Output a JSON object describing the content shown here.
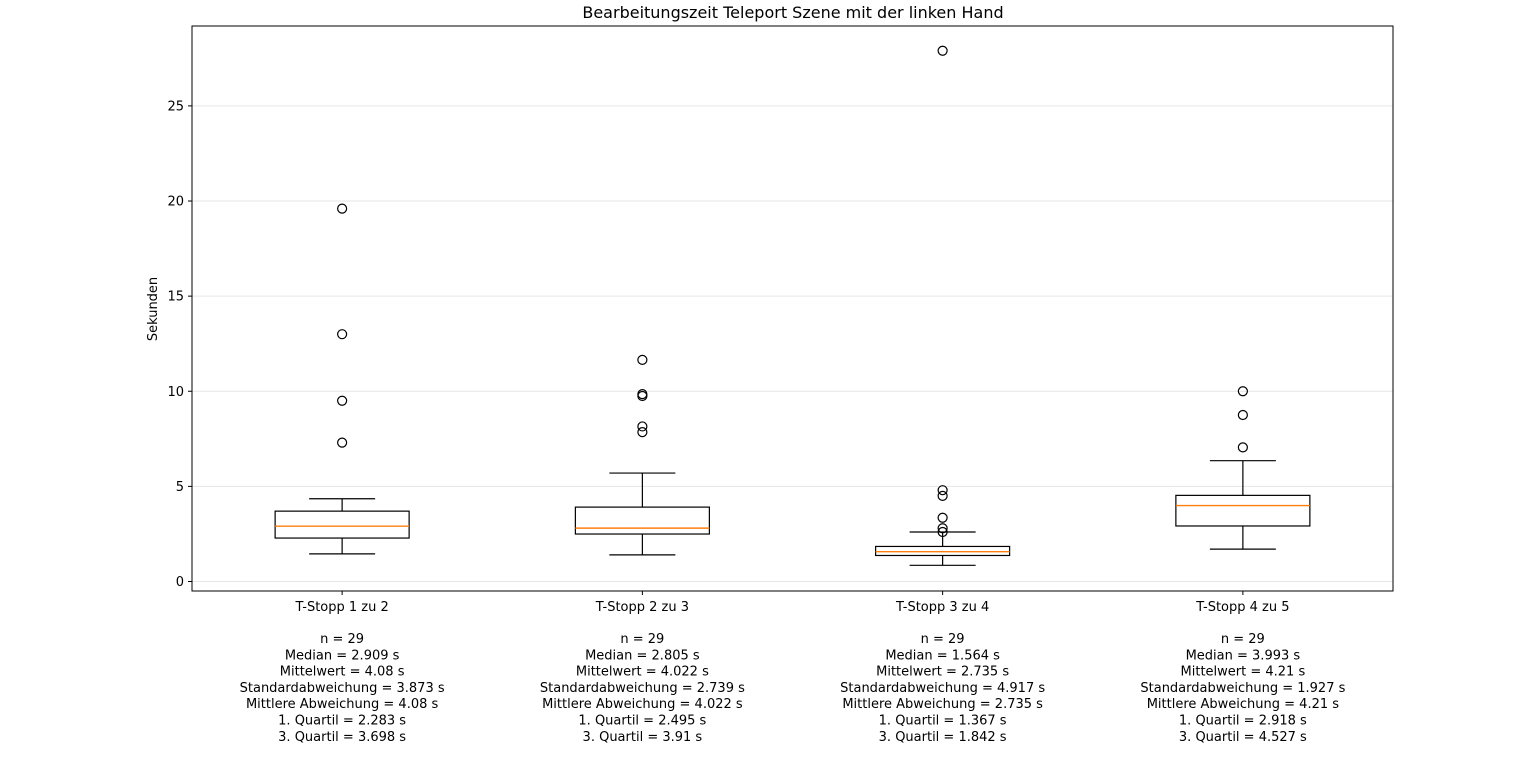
{
  "chart_data": {
    "type": "box",
    "title": "Bearbeitungszeit Teleport Szene mit der linken Hand",
    "xlabel": "",
    "ylabel": "Sekunden",
    "ylim": [
      -0.5,
      29.2
    ],
    "yticks": [
      0,
      5,
      10,
      15,
      20,
      25
    ],
    "grid": "horizontal",
    "colors": {
      "box": "#000000",
      "median": "#ff7f0e",
      "grid": "#e6e6e6"
    },
    "categories": [
      "T-Stopp 1 zu 2",
      "T-Stopp 2 zu 3",
      "T-Stopp 3 zu 4",
      "T-Stopp 4 zu 5"
    ],
    "boxes": [
      {
        "q1": 2.283,
        "median": 2.909,
        "q3": 3.698,
        "whisker_low": 1.45,
        "whisker_high": 4.35,
        "outliers": [
          7.3,
          9.5,
          13.0,
          19.6
        ]
      },
      {
        "q1": 2.495,
        "median": 2.805,
        "q3": 3.91,
        "whisker_low": 1.4,
        "whisker_high": 5.7,
        "outliers": [
          7.85,
          8.15,
          9.75,
          9.85,
          11.65
        ]
      },
      {
        "q1": 1.367,
        "median": 1.564,
        "q3": 1.842,
        "whisker_low": 0.85,
        "whisker_high": 2.6,
        "outliers": [
          2.6,
          2.8,
          3.35,
          4.5,
          4.8,
          27.9
        ]
      },
      {
        "q1": 2.918,
        "median": 3.993,
        "q3": 4.527,
        "whisker_low": 1.7,
        "whisker_high": 6.35,
        "outliers": [
          7.05,
          8.75,
          10.0
        ]
      }
    ],
    "stats": [
      [
        "n = 29",
        "Median = 2.909 s",
        "Mittelwert = 4.08 s",
        "Standardabweichung = 3.873 s",
        "Mittlere Abweichung = 4.08 s",
        "1. Quartil = 2.283 s",
        "3. Quartil = 3.698 s"
      ],
      [
        "n = 29",
        "Median = 2.805 s",
        "Mittelwert = 4.022 s",
        "Standardabweichung = 2.739 s",
        "Mittlere Abweichung = 4.022 s",
        "1. Quartil = 2.495 s",
        "3. Quartil = 3.91 s"
      ],
      [
        "n = 29",
        "Median = 1.564 s",
        "Mittelwert = 2.735 s",
        "Standardabweichung = 4.917 s",
        "Mittlere Abweichung = 2.735 s",
        "1. Quartil = 1.367 s",
        "3. Quartil = 1.842 s"
      ],
      [
        "n = 29",
        "Median = 3.993 s",
        "Mittelwert = 4.21 s",
        "Standardabweichung = 1.927 s",
        "Mittlere Abweichung = 4.21 s",
        "1. Quartil = 2.918 s",
        "3. Quartil = 4.527 s"
      ]
    ]
  }
}
